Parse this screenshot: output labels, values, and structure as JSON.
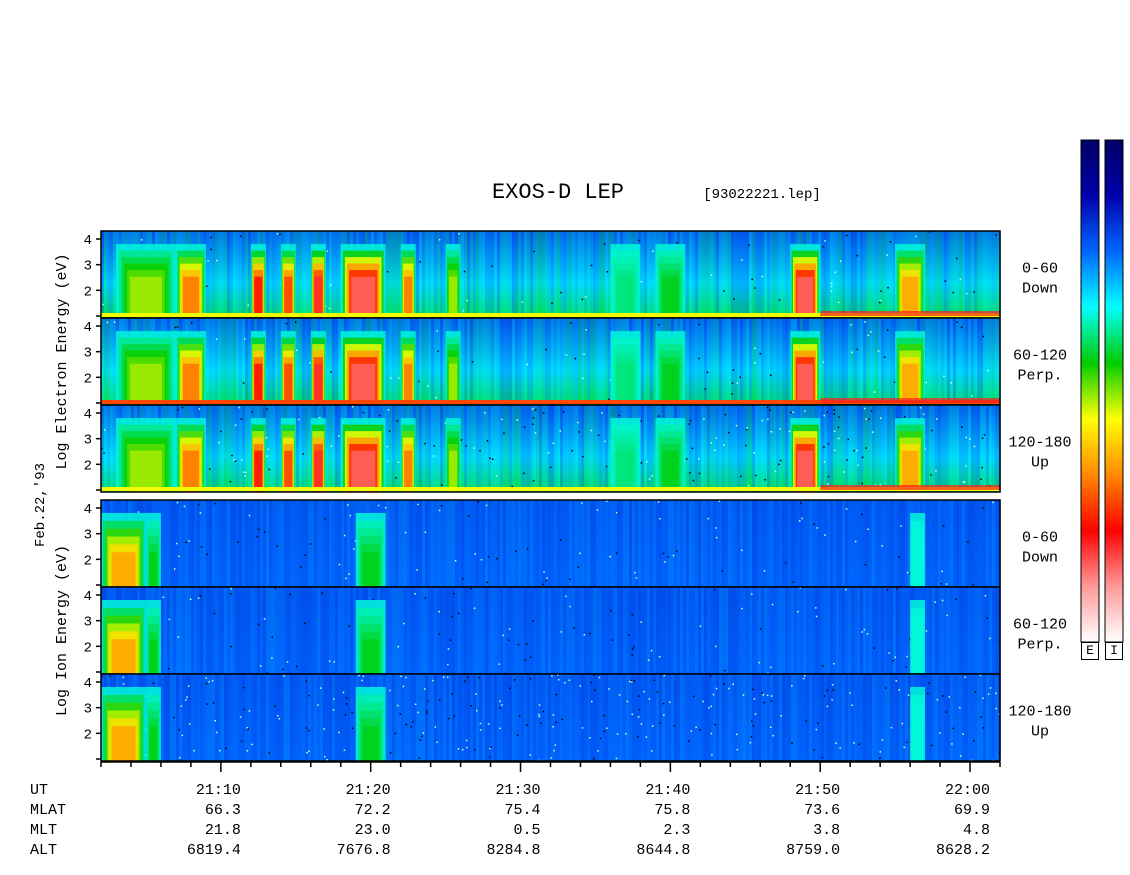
{
  "chart_data": {
    "type": "heatmap",
    "title": "EXOS-D LEP",
    "file_label": "[93022221.lep]",
    "date_label": "Feb.22,'93",
    "species": [
      {
        "name": "Electron",
        "ylabel_words": [
          "Electron",
          "Energy",
          "(eV)"
        ],
        "ylabel_log": "Log"
      },
      {
        "name": "Ion",
        "ylabel_words": [
          "Ion",
          "Energy",
          "(eV)"
        ],
        "ylabel_log": "Log"
      }
    ],
    "y_axis": {
      "scale": "log",
      "range": [
        1,
        4
      ],
      "tick_labels": [
        "4",
        "3",
        "2"
      ]
    },
    "panels": [
      {
        "species": "Electron",
        "pitch": "0-60",
        "direction": "Down"
      },
      {
        "species": "Electron",
        "pitch": "60-120",
        "direction": "Perp."
      },
      {
        "species": "Electron",
        "pitch": "120-180",
        "direction": "Up"
      },
      {
        "species": "Ion",
        "pitch": "0-60",
        "direction": "Down"
      },
      {
        "species": "Ion",
        "pitch": "60-120",
        "direction": "Perp."
      },
      {
        "species": "Ion",
        "pitch": "120-180",
        "direction": "Up"
      }
    ],
    "x_axis": {
      "range": [
        "21:02",
        "22:02"
      ],
      "major_ticks": [
        "21:10",
        "21:20",
        "21:30",
        "21:40",
        "21:50",
        "22:00"
      ]
    },
    "orbit_rows": [
      {
        "label": "UT",
        "values": [
          "21:10",
          "21:20",
          "21:30",
          "21:40",
          "21:50",
          "22:00"
        ]
      },
      {
        "label": "MLAT",
        "values": [
          "66.3",
          "72.2",
          "75.4",
          "75.8",
          "73.6",
          "69.9"
        ]
      },
      {
        "label": "MLT",
        "values": [
          "21.8",
          "23.0",
          "0.5",
          "2.3",
          "3.8",
          "4.8"
        ]
      },
      {
        "label": "ALT",
        "values": [
          "6819.4",
          "7676.8",
          "8284.8",
          "8644.8",
          "8759.0",
          "8628.2"
        ]
      }
    ],
    "colorbars": [
      {
        "label": "E"
      },
      {
        "label": "I"
      }
    ],
    "color_scale": [
      "#ffffff",
      "#ff9999",
      "#ff0000",
      "#ff8800",
      "#ffff00",
      "#00cc00",
      "#00ffff",
      "#0066ff",
      "#0000aa",
      "#000066"
    ],
    "electron_events": [
      {
        "t0": "21:03",
        "t1": "21:07",
        "level": 0.55
      },
      {
        "t0": "21:07",
        "t1": "21:09",
        "level": 0.75
      },
      {
        "t0": "21:12",
        "t1": "21:13",
        "level": 0.85
      },
      {
        "t0": "21:14",
        "t1": "21:15",
        "level": 0.8
      },
      {
        "t0": "21:16",
        "t1": "21:17",
        "level": 0.9
      },
      {
        "t0": "21:18",
        "t1": "21:21",
        "level": 0.95
      },
      {
        "t0": "21:22",
        "t1": "21:23",
        "level": 0.75
      },
      {
        "t0": "21:25",
        "t1": "21:26",
        "level": 0.55
      },
      {
        "t0": "21:36",
        "t1": "21:38",
        "level": 0.4
      },
      {
        "t0": "21:39",
        "t1": "21:41",
        "level": 0.45
      },
      {
        "t0": "21:48",
        "t1": "21:50",
        "level": 0.95
      },
      {
        "t0": "21:55",
        "t1": "21:57",
        "level": 0.7
      }
    ],
    "ion_events": [
      {
        "t0": "21:02",
        "t1": "21:05",
        "level": 0.7
      },
      {
        "t0": "21:05",
        "t1": "21:06",
        "level": 0.45
      },
      {
        "t0": "21:19",
        "t1": "21:21",
        "level": 0.45
      },
      {
        "t0": "21:56",
        "t1": "21:57",
        "level": 0.35
      }
    ]
  }
}
